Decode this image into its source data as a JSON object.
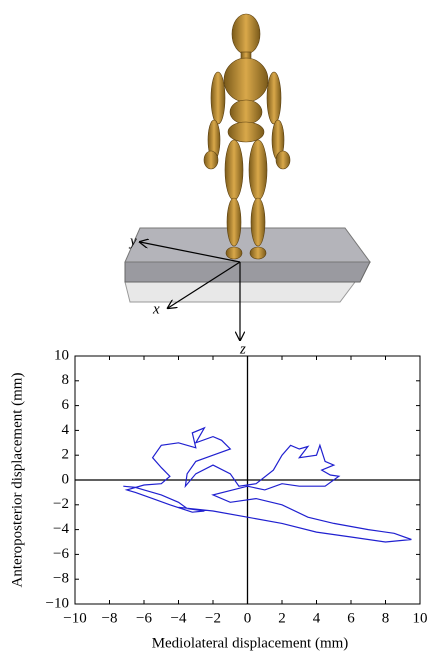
{
  "illustration": {
    "axis_labels": [
      "y",
      "x",
      "z"
    ]
  },
  "chart_data": {
    "type": "line",
    "xlabel": "Mediolateral displacement (mm)",
    "ylabel": "Anteroposterior displacement (mm)",
    "xlim": [
      -10,
      10
    ],
    "ylim": [
      -10,
      10
    ],
    "xticks": [
      {
        "value": -10,
        "label": "−10"
      },
      {
        "value": -8,
        "label": "−8"
      },
      {
        "value": -6,
        "label": "−6"
      },
      {
        "value": -4,
        "label": "−4"
      },
      {
        "value": -2,
        "label": "−2"
      },
      0,
      2,
      4,
      6,
      8,
      10
    ],
    "yticks": [
      {
        "value": -10,
        "label": "−10"
      },
      {
        "value": -8,
        "label": "−8"
      },
      {
        "value": -6,
        "label": "−6"
      },
      {
        "value": -4,
        "label": "−4"
      },
      {
        "value": -2,
        "label": "−2"
      },
      0,
      2,
      4,
      6,
      8,
      10
    ],
    "color": "#2020d0",
    "x": [
      -7.2,
      -6.5,
      -6,
      -5,
      -4,
      -3.5,
      -2.5,
      -3.2,
      -4.5,
      -5.5,
      -6.5,
      -7,
      -6,
      -5,
      -4.5,
      -5,
      -5.5,
      -5,
      -4,
      -3,
      -3.2,
      -2.5,
      -3,
      -2,
      -1.5,
      -1,
      -2,
      -3,
      -3.5,
      -3.6,
      -3,
      -2,
      -1,
      -0.5,
      0.5,
      1.5,
      2,
      2.5,
      3,
      3.5,
      3,
      4,
      4.2,
      4.5,
      5,
      4.3,
      4.8,
      5.3,
      4.5,
      3,
      2,
      1,
      0,
      -2,
      -1,
      0.5,
      2,
      3.5,
      5,
      7,
      8.5,
      9.5,
      8,
      6,
      4,
      2,
      0,
      -2,
      -4
    ],
    "y": [
      -0.5,
      -0.6,
      -0.8,
      -1.2,
      -1.8,
      -2.3,
      -2.5,
      -2.6,
      -2,
      -1.5,
      -1,
      -0.8,
      -0.4,
      -0.3,
      0.3,
      1,
      1.8,
      2.8,
      3,
      2.6,
      3.8,
      4.2,
      3,
      3.5,
      3.2,
      2.5,
      2,
      1.5,
      0.5,
      -0.5,
      0.5,
      1.2,
      0.5,
      -0.5,
      -0.3,
      0.8,
      2,
      2.8,
      2.5,
      2.7,
      1.8,
      2,
      2.8,
      1.5,
      1.2,
      0.8,
      0.4,
      0.3,
      -0.5,
      -0.5,
      -0.3,
      -0.8,
      -0.5,
      -1.2,
      -1.8,
      -1.5,
      -2,
      -3,
      -3.5,
      -4,
      -4.3,
      -4.8,
      -5,
      -4.6,
      -4.2,
      -3.5,
      -3,
      -2.5,
      -2.2
    ]
  }
}
